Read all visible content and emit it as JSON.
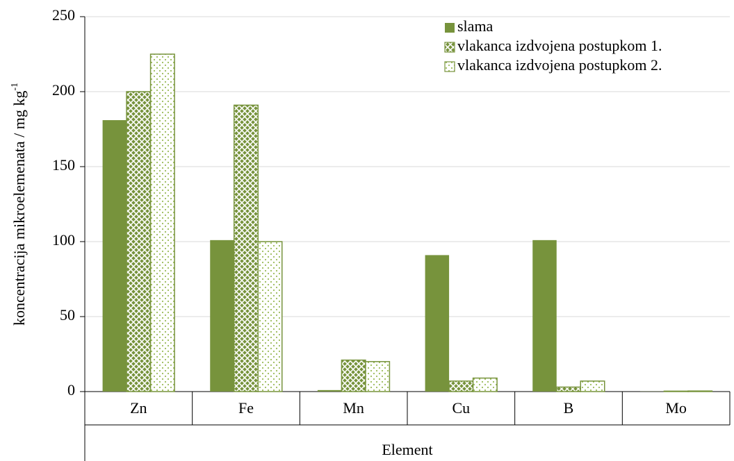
{
  "chart_data": {
    "type": "bar",
    "y_label": "koncentracija mikroelemenata / mg kg",
    "y_label_superscript": "-1",
    "x_label": "Element",
    "categories": [
      "Zn",
      "Fe",
      "Mn",
      "Cu",
      "B",
      "Mo"
    ],
    "series": [
      {
        "name": "slama",
        "color": "#77933c",
        "pattern": "solid",
        "values": [
          181,
          101,
          1,
          91,
          101,
          0.1
        ]
      },
      {
        "name": "vlakanca izdvojena postupkom 1.",
        "color": "#77933c",
        "pattern": "crosshatch",
        "values": [
          200,
          191,
          21,
          7,
          3,
          0.3
        ]
      },
      {
        "name": "vlakanca izdvojena postupkom 2.",
        "color": "#77933c",
        "pattern": "dots",
        "values": [
          225,
          100,
          20,
          9,
          7,
          0.4
        ]
      }
    ],
    "ylim": [
      0,
      250
    ],
    "yticks": [
      0,
      50,
      100,
      150,
      200,
      250
    ],
    "grid": true,
    "legend": "upper right"
  }
}
